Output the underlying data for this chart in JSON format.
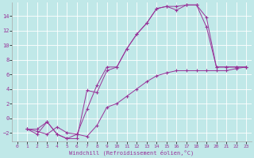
{
  "xlabel": "Windchill (Refroidissement éolien,°C)",
  "bg_color": "#c0e8e8",
  "line_color": "#993399",
  "grid_color": "#ffffff",
  "xlim": [
    -0.5,
    23.5
  ],
  "ylim": [
    -3.2,
    15.8
  ],
  "yticks": [
    -2,
    0,
    2,
    4,
    6,
    8,
    10,
    12,
    14
  ],
  "xticks": [
    0,
    1,
    2,
    3,
    4,
    5,
    6,
    7,
    8,
    9,
    10,
    11,
    12,
    13,
    14,
    15,
    16,
    17,
    18,
    19,
    20,
    21,
    22,
    23
  ],
  "line1_x": [
    1,
    2,
    3,
    4,
    5,
    6,
    7,
    8,
    9,
    10,
    11,
    12,
    13,
    14,
    15,
    16,
    17,
    18,
    19,
    20,
    21,
    22,
    23
  ],
  "line1_y": [
    -1.5,
    -1.8,
    -2.2,
    -1.2,
    -2.0,
    -2.2,
    -2.5,
    -1.0,
    1.5,
    2.0,
    3.0,
    4.0,
    5.0,
    5.8,
    6.2,
    6.5,
    6.5,
    6.5,
    6.5,
    6.5,
    6.5,
    6.8,
    7.0
  ],
  "line2_x": [
    1,
    2,
    3,
    4,
    5,
    6,
    7,
    8,
    9,
    10,
    11,
    12,
    13,
    14,
    15,
    16,
    17,
    18,
    19,
    20,
    21,
    22,
    23
  ],
  "line2_y": [
    -1.5,
    -2.2,
    -0.5,
    -2.2,
    -2.8,
    -2.2,
    1.2,
    4.5,
    7.0,
    7.0,
    9.5,
    11.5,
    13.0,
    15.0,
    15.3,
    14.8,
    15.5,
    15.5,
    12.5,
    7.0,
    7.0,
    7.0,
    7.0
  ],
  "line3_x": [
    1,
    2,
    3,
    4,
    5,
    6,
    7,
    8,
    9,
    10,
    11,
    12,
    13,
    14,
    15,
    16,
    17,
    18,
    19,
    20,
    21,
    22,
    23
  ],
  "line3_y": [
    -1.5,
    -1.5,
    -0.5,
    -2.2,
    -2.8,
    -2.8,
    3.8,
    3.5,
    6.5,
    7.0,
    9.5,
    11.5,
    13.0,
    15.0,
    15.3,
    15.3,
    15.5,
    15.5,
    13.8,
    7.0,
    7.0,
    7.0,
    7.0
  ]
}
